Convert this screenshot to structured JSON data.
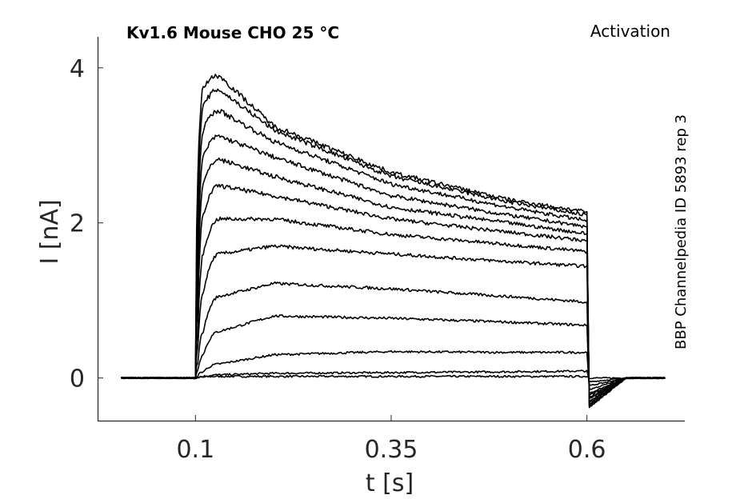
{
  "chart_data": {
    "type": "line",
    "title": "Kv1.6  Mouse  CHO  25 °C",
    "protocol": "Activation",
    "note": "BBP Channelpedia ID 5893 rep 3",
    "xlabel": "t [s]",
    "ylabel": "I [nA]",
    "xlim": [
      -0.025,
      0.725
    ],
    "ylim": [
      -0.55,
      4.4
    ],
    "xticks": [
      0.1,
      0.35,
      0.6
    ],
    "xtick_labels": [
      "0.1",
      "0.35",
      "0.6"
    ],
    "yticks": [
      0,
      2,
      4
    ],
    "ytick_labels": [
      "0",
      "2",
      "4"
    ],
    "grid": false,
    "stim_on": 0.1,
    "stim_off": 0.6,
    "series": [
      {
        "x": [
          0.005,
          0.1,
          0.103,
          0.11,
          0.13,
          0.2,
          0.35,
          0.5,
          0.6,
          0.603,
          0.65,
          0.7
        ],
        "values": [
          0.0,
          0.0,
          0.0,
          0.01,
          0.02,
          0.02,
          0.02,
          0.02,
          0.02,
          0.0,
          0.0,
          0.0
        ]
      },
      {
        "x": [
          0.005,
          0.1,
          0.103,
          0.11,
          0.13,
          0.2,
          0.35,
          0.5,
          0.6,
          0.603,
          0.65,
          0.7
        ],
        "values": [
          0.0,
          0.0,
          0.01,
          0.02,
          0.04,
          0.06,
          0.07,
          0.08,
          0.09,
          -0.05,
          0.0,
          0.0
        ]
      },
      {
        "x": [
          0.005,
          0.1,
          0.103,
          0.11,
          0.13,
          0.2,
          0.35,
          0.5,
          0.6,
          0.603,
          0.65,
          0.7
        ],
        "values": [
          0.0,
          0.0,
          0.03,
          0.08,
          0.18,
          0.3,
          0.34,
          0.33,
          0.33,
          -0.1,
          0.0,
          0.0
        ]
      },
      {
        "x": [
          0.005,
          0.1,
          0.103,
          0.11,
          0.13,
          0.2,
          0.35,
          0.5,
          0.6,
          0.603,
          0.65,
          0.7
        ],
        "values": [
          0.0,
          0.0,
          0.1,
          0.3,
          0.6,
          0.8,
          0.77,
          0.72,
          0.68,
          -0.15,
          0.0,
          0.0
        ]
      },
      {
        "x": [
          0.005,
          0.1,
          0.103,
          0.11,
          0.13,
          0.2,
          0.35,
          0.5,
          0.6,
          0.603,
          0.65,
          0.7
        ],
        "values": [
          0.0,
          0.0,
          0.2,
          0.6,
          1.05,
          1.22,
          1.15,
          1.05,
          0.98,
          -0.2,
          0.0,
          0.0
        ]
      },
      {
        "x": [
          0.005,
          0.1,
          0.103,
          0.11,
          0.13,
          0.2,
          0.35,
          0.5,
          0.6,
          0.603,
          0.65,
          0.7
        ],
        "values": [
          0.0,
          0.0,
          0.4,
          1.1,
          1.6,
          1.7,
          1.6,
          1.5,
          1.44,
          -0.22,
          0.0,
          0.0
        ]
      },
      {
        "x": [
          0.005,
          0.1,
          0.103,
          0.11,
          0.13,
          0.2,
          0.35,
          0.5,
          0.6,
          0.603,
          0.65,
          0.7
        ],
        "values": [
          0.0,
          0.0,
          0.6,
          1.6,
          2.05,
          2.05,
          1.85,
          1.72,
          1.63,
          -0.25,
          0.0,
          0.0
        ]
      },
      {
        "x": [
          0.005,
          0.1,
          0.103,
          0.11,
          0.13,
          0.2,
          0.35,
          0.5,
          0.6,
          0.603,
          0.65,
          0.7
        ],
        "values": [
          0.0,
          0.0,
          0.9,
          2.1,
          2.48,
          2.35,
          2.05,
          1.88,
          1.77,
          -0.27,
          0.0,
          0.0
        ]
      },
      {
        "x": [
          0.005,
          0.1,
          0.103,
          0.11,
          0.13,
          0.2,
          0.35,
          0.5,
          0.6,
          0.603,
          0.65,
          0.7
        ],
        "values": [
          0.0,
          0.0,
          1.2,
          2.5,
          2.82,
          2.6,
          2.2,
          2.0,
          1.86,
          -0.3,
          0.0,
          0.0
        ]
      },
      {
        "x": [
          0.005,
          0.1,
          0.103,
          0.11,
          0.13,
          0.2,
          0.35,
          0.5,
          0.6,
          0.603,
          0.65,
          0.7
        ],
        "values": [
          0.0,
          0.0,
          1.5,
          2.85,
          3.12,
          2.85,
          2.35,
          2.1,
          1.95,
          -0.32,
          0.0,
          0.0
        ]
      },
      {
        "x": [
          0.005,
          0.1,
          0.103,
          0.11,
          0.13,
          0.2,
          0.35,
          0.5,
          0.6,
          0.603,
          0.65,
          0.7
        ],
        "values": [
          0.0,
          0.0,
          1.9,
          3.2,
          3.45,
          3.05,
          2.5,
          2.2,
          2.03,
          -0.34,
          0.0,
          0.0
        ]
      },
      {
        "x": [
          0.005,
          0.1,
          0.103,
          0.11,
          0.13,
          0.2,
          0.35,
          0.5,
          0.6,
          0.603,
          0.65,
          0.7
        ],
        "values": [
          0.0,
          0.0,
          2.3,
          3.5,
          3.72,
          3.2,
          2.6,
          2.27,
          2.1,
          -0.36,
          0.0,
          0.0
        ]
      },
      {
        "x": [
          0.005,
          0.1,
          0.103,
          0.11,
          0.13,
          0.2,
          0.35,
          0.5,
          0.6,
          0.603,
          0.65,
          0.7
        ],
        "values": [
          0.0,
          0.0,
          2.6,
          3.75,
          3.9,
          3.25,
          2.65,
          2.3,
          2.14,
          -0.38,
          0.0,
          0.0
        ]
      }
    ]
  }
}
